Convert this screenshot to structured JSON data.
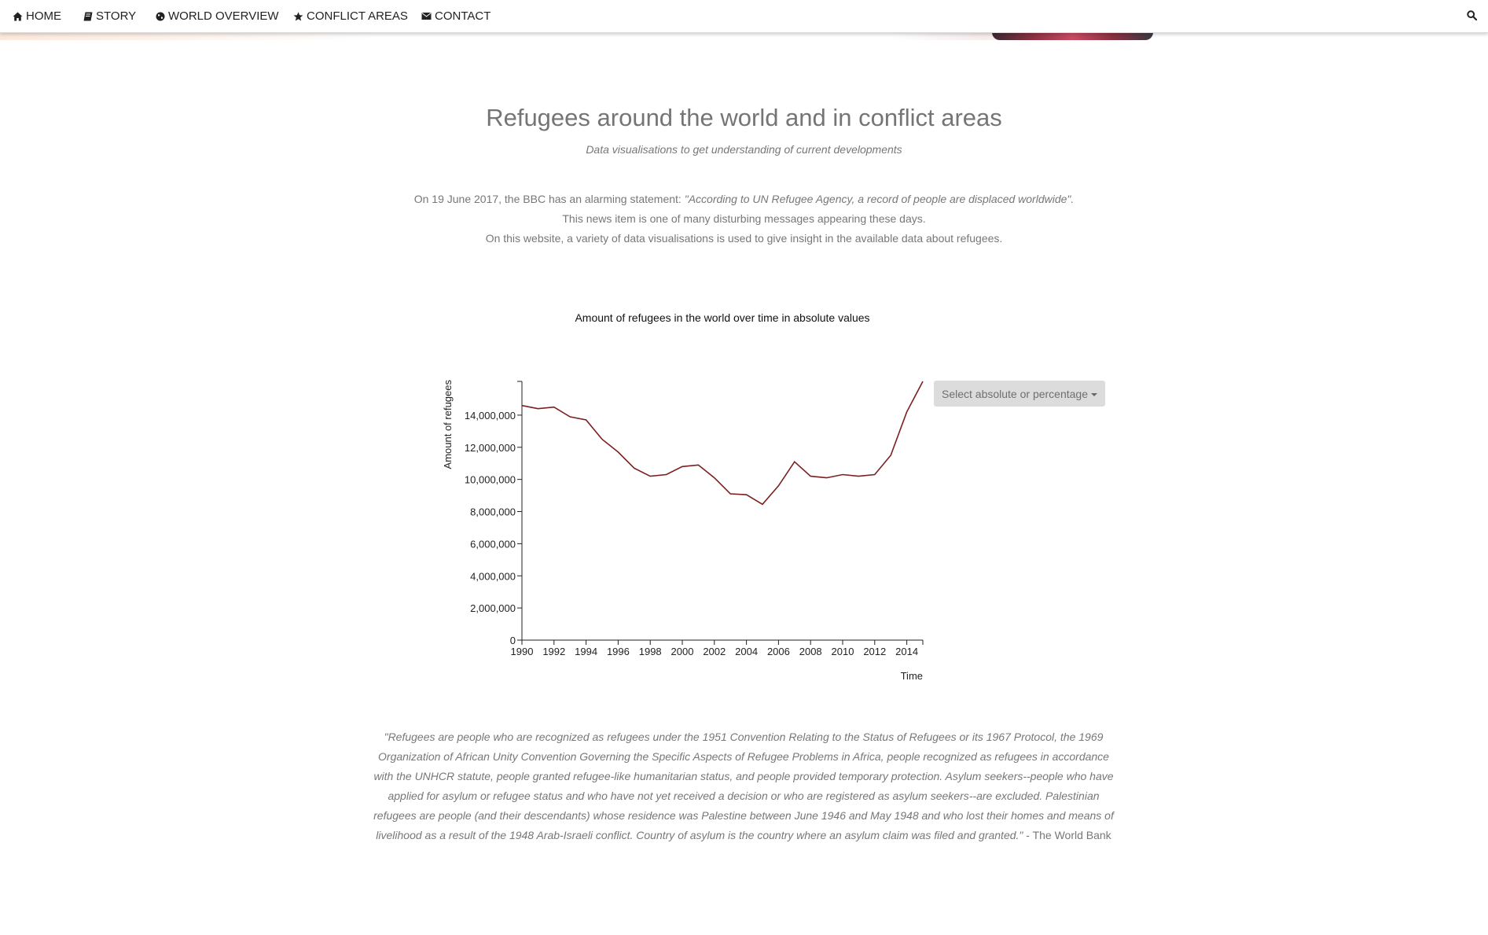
{
  "nav": {
    "items": [
      {
        "label": "HOME",
        "icon": "home-icon"
      },
      {
        "label": "STORY",
        "icon": "book-icon"
      },
      {
        "label": "WORLD OVERVIEW",
        "icon": "globe-icon"
      },
      {
        "label": "CONFLICT AREAS",
        "icon": "star-icon"
      },
      {
        "label": "CONTACT",
        "icon": "envelope-icon"
      }
    ],
    "search_icon": "search-icon"
  },
  "header": {
    "title": "Refugees around the world and in conflict areas",
    "subtitle": "Data visualisations to get understanding of current developments"
  },
  "intro": {
    "line1_prefix": "On 19 June 2017, the BBC has an alarming statement:",
    "line1_quote": "\"According to UN Refugee Agency, a record of people are displaced worldwide\".",
    "line2": "This news item is one of many disturbing messages appearing these days.",
    "line3": "On this website, a variety of data visualisations is used to give insight in the available data about refugees."
  },
  "dropdown": {
    "label": "Select absolute or percentage"
  },
  "colors": {
    "line": "#7b1f1f",
    "text": "#777777",
    "dropdown_bg": "#dcdcdc"
  },
  "chart_data": {
    "type": "line",
    "title": "Amount of refugees in the world over time in absolute values",
    "xlabel": "Time",
    "ylabel": "Amount of refugees",
    "x": [
      1990,
      1991,
      1992,
      1993,
      1994,
      1995,
      1996,
      1997,
      1998,
      1999,
      2000,
      2001,
      2002,
      2003,
      2004,
      2005,
      2006,
      2007,
      2008,
      2009,
      2010,
      2011,
      2012,
      2013,
      2014,
      2015
    ],
    "series": [
      {
        "values": [
          14600000,
          14400000,
          14500000,
          13900000,
          13700000,
          12500000,
          11700000,
          10700000,
          10200000,
          10300000,
          10800000,
          10900000,
          10100000,
          9100000,
          9050000,
          8450000,
          9600000,
          11100000,
          10200000,
          10100000,
          10300000,
          10200000,
          10300000,
          11500000,
          14200000,
          16100000
        ]
      }
    ],
    "xlim": [
      1990,
      2015
    ],
    "ylim": [
      0,
      16100000
    ],
    "xticks": [
      "1990",
      "1992",
      "1994",
      "1996",
      "1998",
      "2000",
      "2002",
      "2004",
      "2006",
      "2008",
      "2010",
      "2012",
      "2014"
    ],
    "yticks": [
      "0",
      "2,000,000",
      "4,000,000",
      "6,000,000",
      "8,000,000",
      "10,000,000",
      "12,000,000",
      "14,000,000"
    ],
    "grid": false
  },
  "quote": {
    "text": "\"Refugees are people who are recognized as refugees under the 1951 Convention Relating to the Status of Refugees or its 1967 Protocol, the 1969 Organization of African Unity Convention Governing the Specific Aspects of Refugee Problems in Africa, people recognized as refugees in accordance with the UNHCR statute, people granted refugee-like humanitarian status, and people provided temporary protection. Asylum seekers--people who have applied for asylum or refugee status and who have not yet received a decision or who are registered as asylum seekers--are excluded. Palestinian refugees are people (and their descendants) whose residence was Palestine between June 1946 and May 1948 and who lost their homes and means of livelihood as a result of the 1948 Arab-Israeli conflict. Country of asylum is the country where an asylum claim was filed and granted.\"",
    "source": " - The World Bank"
  }
}
